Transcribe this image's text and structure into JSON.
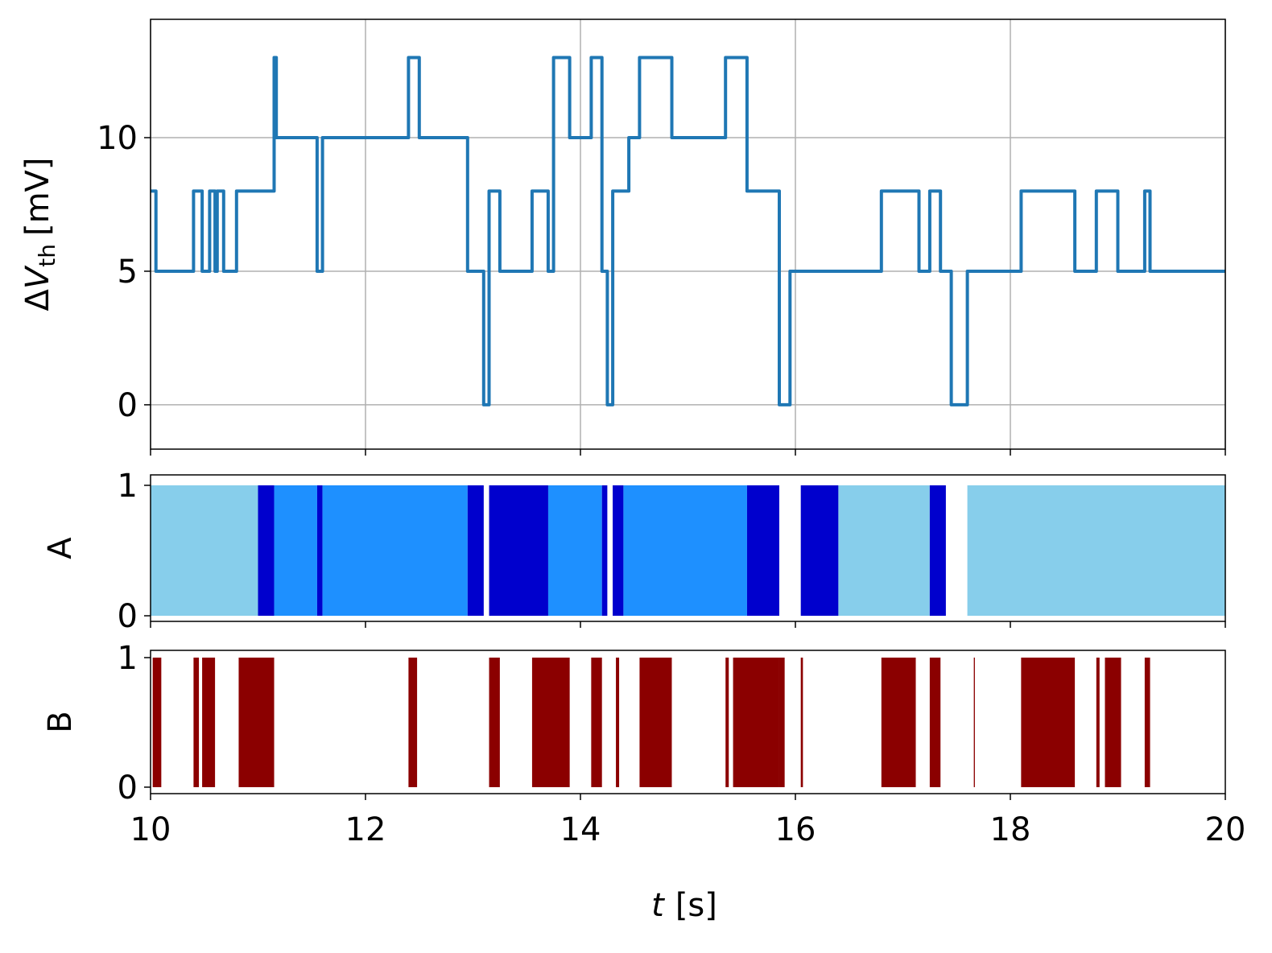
{
  "chart_data": [
    {
      "type": "line",
      "ylabel_parts": [
        "Δ",
        "V",
        "th",
        "[mV]"
      ],
      "color": "#1f77b4",
      "grid": true,
      "xlim": [
        10,
        20
      ],
      "xticks": [
        10,
        12,
        14,
        16,
        18,
        20
      ],
      "ylim": [
        -1.66,
        14.43
      ],
      "yticks": [
        0,
        5,
        10
      ],
      "x": [
        10,
        10.05,
        10.05,
        10.4,
        10.4,
        10.48,
        10.48,
        10.55,
        10.55,
        10.6,
        10.6,
        10.62,
        10.62,
        10.68,
        10.68,
        10.8,
        10.8,
        11.15,
        11.15,
        11.17,
        11.17,
        11.55,
        11.55,
        11.6,
        11.6,
        12.4,
        12.4,
        12.5,
        12.5,
        12.95,
        12.95,
        13.1,
        13.1,
        13.15,
        13.15,
        13.25,
        13.25,
        13.55,
        13.55,
        13.7,
        13.7,
        13.75,
        13.75,
        13.9,
        13.9,
        14.1,
        14.1,
        14.2,
        14.2,
        14.25,
        14.25,
        14.3,
        14.3,
        14.45,
        14.45,
        14.55,
        14.55,
        14.85,
        14.85,
        15.35,
        15.35,
        15.55,
        15.55,
        15.85,
        15.85,
        15.95,
        15.95,
        16.8,
        16.8,
        17.15,
        17.15,
        17.25,
        17.25,
        17.35,
        17.35,
        17.45,
        17.45,
        17.6,
        17.6,
        18.1,
        18.1,
        18.6,
        18.6,
        18.8,
        18.8,
        19.0,
        19.0,
        19.25,
        19.25,
        19.3,
        19.3,
        20
      ],
      "values": [
        8,
        8,
        5,
        5,
        8,
        8,
        5,
        5,
        8,
        8,
        5,
        5,
        8,
        8,
        5,
        5,
        8,
        8,
        13,
        13,
        10,
        10,
        5,
        5,
        10,
        10,
        13,
        13,
        10,
        10,
        5,
        5,
        0,
        0,
        8,
        8,
        5,
        5,
        8,
        8,
        5,
        5,
        13,
        13,
        10,
        10,
        13,
        13,
        5,
        5,
        0,
        0,
        8,
        8,
        10,
        10,
        13,
        13,
        10,
        10,
        13,
        13,
        8,
        8,
        0,
        0,
        5,
        5,
        8,
        8,
        5,
        5,
        8,
        8,
        5,
        5,
        0,
        0,
        5,
        5,
        8,
        8,
        5,
        5,
        8,
        8,
        5,
        5,
        8,
        8,
        5,
        5
      ]
    },
    {
      "type": "span",
      "ylabel": "A",
      "grid": false,
      "xlim": [
        10,
        20
      ],
      "xticks": [
        10,
        12,
        14,
        16,
        18,
        20
      ],
      "ylim": [
        -0.043,
        1.08
      ],
      "yticks": [
        0,
        1
      ],
      "x0": [
        10,
        11.0,
        11.15,
        11.55,
        11.6,
        12.95,
        13.15,
        13.7,
        14.2,
        14.3,
        14.4,
        15.55,
        16.05,
        16.4,
        17.25,
        17.6
      ],
      "x1": [
        11.0,
        11.15,
        11.55,
        11.6,
        12.95,
        13.1,
        13.7,
        14.2,
        14.25,
        14.4,
        15.55,
        15.85,
        16.4,
        17.25,
        17.4,
        20
      ],
      "values": [
        1,
        1,
        1,
        1,
        1,
        1,
        1,
        1,
        1,
        1,
        1,
        1,
        1,
        1,
        1,
        1
      ],
      "colors": [
        "#87ceeb",
        "#0000cd",
        "#1e90ff",
        "#0000cd",
        "#1e90ff",
        "#0000cd",
        "#0000cd",
        "#1e90ff",
        "#0000cd",
        "#0000cd",
        "#1e90ff",
        "#0000cd",
        "#0000cd",
        "#87ceeb",
        "#0000cd",
        "#87ceeb"
      ]
    },
    {
      "type": "span",
      "ylabel": "B",
      "grid": false,
      "color": "#8b0000",
      "xlim": [
        10,
        20
      ],
      "xticks": [
        10,
        12,
        14,
        16,
        18,
        20
      ],
      "ylim": [
        -0.05,
        1.056
      ],
      "yticks": [
        0,
        1
      ],
      "xlabel_parts": [
        "t",
        "[s]"
      ],
      "x0": [
        10.02,
        10.4,
        10.48,
        10.82,
        12.4,
        13.15,
        13.55,
        14.1,
        14.33,
        14.55,
        15.35,
        15.42,
        15.85,
        16.05,
        16.8,
        17.25,
        17.66,
        18.1,
        18.8,
        18.88,
        19.25
      ],
      "x1": [
        10.1,
        10.45,
        10.6,
        11.15,
        12.48,
        13.25,
        13.9,
        14.2,
        14.36,
        14.85,
        15.38,
        15.85,
        15.9,
        16.07,
        17.12,
        17.35,
        17.67,
        18.6,
        18.83,
        19.03,
        19.3
      ],
      "values": [
        1,
        1,
        1,
        1,
        1,
        1,
        1,
        1,
        1,
        1,
        1,
        1,
        1,
        1,
        1,
        1,
        1,
        1,
        1,
        1,
        1
      ]
    }
  ]
}
